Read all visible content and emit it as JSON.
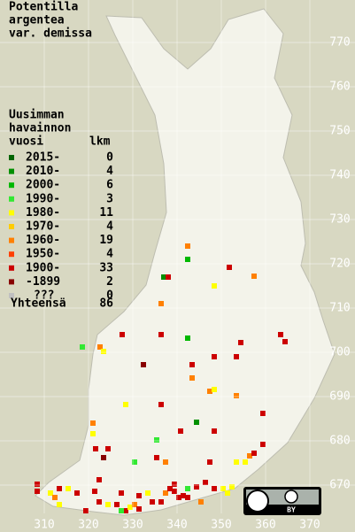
{
  "title": [
    "Potentilla",
    "argentea",
    "var. demissa"
  ],
  "legend": {
    "header": [
      "Uusimman",
      "havainnon"
    ],
    "header_year": "vuosi",
    "header_count": "lkm",
    "entries": [
      {
        "label": "2015-",
        "count": 0,
        "color": "#006400"
      },
      {
        "label": "2010-",
        "count": 4,
        "color": "#009000"
      },
      {
        "label": "2000-",
        "count": 6,
        "color": "#00b800"
      },
      {
        "label": "1990-",
        "count": 3,
        "color": "#33e833"
      },
      {
        "label": "1980-",
        "count": 11,
        "color": "#ffff00"
      },
      {
        "label": "1970-",
        "count": 4,
        "color": "#ffcc00"
      },
      {
        "label": "1960-",
        "count": 19,
        "color": "#ff8000"
      },
      {
        "label": "1950-",
        "count": 4,
        "color": "#ff4000"
      },
      {
        "label": "1900-",
        "count": 33,
        "color": "#cc0000"
      },
      {
        "label": "-1899",
        "count": 2,
        "color": "#880000"
      },
      {
        "label": "???",
        "count": 0,
        "color": "#c0c0c0"
      }
    ],
    "total_label": "Yhteensä",
    "total": 86
  },
  "axes": {
    "xticks": [
      310,
      320,
      330,
      340,
      350,
      360,
      370
    ],
    "yticks": [
      670,
      680,
      690,
      700,
      710,
      720,
      730,
      740,
      750,
      760,
      770
    ]
  },
  "badge": "BY"
}
